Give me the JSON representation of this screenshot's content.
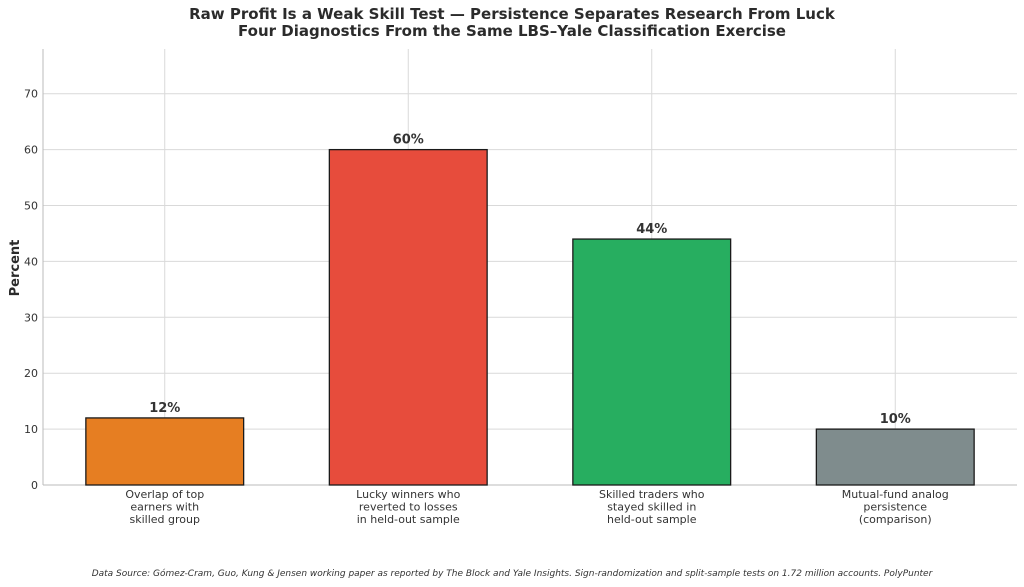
{
  "chart_data": {
    "type": "bar",
    "title": "Raw Profit Is a Weak Skill Test — Persistence Separates Research From Luck",
    "subtitle": "Four Diagnostics From the Same LBS–Yale Classification Exercise",
    "xlabel": "",
    "ylabel": "Percent",
    "ylim": [
      0,
      78
    ],
    "yticks": [
      0,
      10,
      20,
      30,
      40,
      50,
      60,
      70
    ],
    "grid": true,
    "categories": [
      [
        "Overlap of top",
        "earners with",
        "skilled group"
      ],
      [
        "Lucky winners who",
        "reverted to losses",
        "in held-out sample"
      ],
      [
        "Skilled traders who",
        "stayed skilled in",
        "held-out sample"
      ],
      [
        "Mutual-fund analog",
        "persistence",
        "(comparison)"
      ]
    ],
    "values": [
      12,
      60,
      44,
      10
    ],
    "data_labels": [
      "12%",
      "60%",
      "44%",
      "10%"
    ],
    "colors": [
      "#e67e22",
      "#e74c3c",
      "#27ae60",
      "#7f8c8d"
    ]
  },
  "source_note": "Data Source: Gómez-Cram, Guo, Kung & Jensen working paper as reported by The Block and Yale Insights. Sign-randomization and split-sample tests on 1.72 million accounts. PolyPunter"
}
